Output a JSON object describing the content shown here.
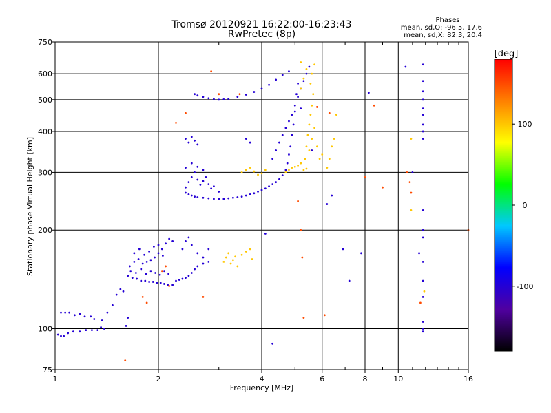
{
  "chart_data": {
    "type": "scatter",
    "title": "Tromsø 20120921 16:22:00-16:23:43",
    "subtitle": "RwPretec (8p)",
    "xlabel": "Frequency [MHz]",
    "ylabel": "Stationary phase Virtual Height [km]",
    "x_scale": "log",
    "y_scale": "log",
    "xlim": [
      1,
      16
    ],
    "ylim": [
      75,
      750
    ],
    "x_ticks": [
      1,
      2,
      4,
      6,
      8,
      10,
      16
    ],
    "x_tick_labels": [
      "1",
      "2",
      "4",
      "6",
      "8",
      "10",
      "16"
    ],
    "y_ticks": [
      75,
      100,
      200,
      300,
      400,
      500,
      600,
      750
    ],
    "y_tick_labels": [
      "75",
      "100",
      "200",
      "300",
      "400",
      "500",
      "600",
      "750"
    ],
    "x_gridlines": [
      1,
      2,
      4,
      6,
      8,
      10,
      16
    ],
    "y_gridlines": [
      75,
      100,
      200,
      300,
      400,
      500,
      600,
      750
    ],
    "grid": true,
    "legend_placement": "top-right",
    "legend_title": "Phases",
    "legend_lines": [
      "mean, sd,O: -96.5, 17.6",
      "mean, sd,X:  82.3, 20.4"
    ],
    "colorbar": {
      "label": "[deg]",
      "range": [
        -180,
        180
      ],
      "ticks": [
        100,
        0,
        -100
      ],
      "tick_labels": [
        "100",
        "0",
        "-100"
      ],
      "colors": [
        "#000000",
        "#5000a0",
        "#0000ff",
        "#00c8ff",
        "#00ff00",
        "#ffff00",
        "#ff8000",
        "#ff0000"
      ]
    },
    "series": [
      {
        "color_phase_deg": -100,
        "points": [
          [
            1.02,
            96
          ],
          [
            1.04,
            95
          ],
          [
            1.06,
            95
          ],
          [
            1.09,
            97
          ],
          [
            1.13,
            98
          ],
          [
            1.18,
            98
          ],
          [
            1.23,
            99
          ],
          [
            1.28,
            99
          ],
          [
            1.33,
            99
          ],
          [
            1.36,
            101
          ],
          [
            1.39,
            100
          ],
          [
            1.04,
            112
          ],
          [
            1.07,
            112
          ],
          [
            1.1,
            112
          ],
          [
            1.14,
            110
          ],
          [
            1.18,
            111
          ],
          [
            1.22,
            109
          ],
          [
            1.27,
            109
          ],
          [
            1.3,
            107
          ],
          [
            1.37,
            106
          ],
          [
            1.42,
            112
          ],
          [
            1.47,
            118
          ],
          [
            1.51,
            127
          ],
          [
            1.55,
            132
          ],
          [
            1.58,
            130
          ],
          [
            1.61,
            102
          ],
          [
            1.63,
            108
          ],
          [
            1.65,
            155
          ],
          [
            1.7,
            160
          ],
          [
            1.75,
            163
          ],
          [
            1.8,
            158
          ],
          [
            1.85,
            160
          ],
          [
            1.9,
            162
          ],
          [
            1.95,
            165
          ],
          [
            2.0,
            170
          ],
          [
            2.05,
            175
          ],
          [
            2.1,
            182
          ],
          [
            2.15,
            188
          ],
          [
            2.2,
            185
          ],
          [
            1.63,
            145
          ],
          [
            1.68,
            143
          ],
          [
            1.73,
            142
          ],
          [
            1.78,
            140
          ],
          [
            1.83,
            140
          ],
          [
            1.88,
            139
          ],
          [
            1.93,
            139
          ],
          [
            1.98,
            138
          ],
          [
            2.03,
            138
          ],
          [
            2.08,
            137
          ],
          [
            2.13,
            136
          ],
          [
            2.2,
            136
          ],
          [
            1.66,
            150
          ],
          [
            1.72,
            148
          ],
          [
            1.78,
            152
          ],
          [
            1.84,
            147
          ],
          [
            1.9,
            150
          ],
          [
            1.96,
            148
          ],
          [
            2.02,
            146
          ],
          [
            2.08,
            150
          ],
          [
            2.14,
            147
          ],
          [
            1.7,
            170
          ],
          [
            1.76,
            175
          ],
          [
            1.82,
            168
          ],
          [
            1.88,
            172
          ],
          [
            1.94,
            178
          ],
          [
            2.0,
            180
          ],
          [
            2.06,
            167
          ],
          [
            2.25,
            140
          ],
          [
            2.3,
            141
          ],
          [
            2.35,
            142
          ],
          [
            2.4,
            143
          ],
          [
            2.45,
            145
          ],
          [
            2.5,
            148
          ],
          [
            2.55,
            152
          ],
          [
            2.6,
            155
          ],
          [
            2.7,
            158
          ],
          [
            2.8,
            160
          ],
          [
            2.35,
            175
          ],
          [
            2.4,
            185
          ],
          [
            2.45,
            190
          ],
          [
            2.5,
            180
          ],
          [
            2.6,
            170
          ],
          [
            2.7,
            165
          ],
          [
            2.8,
            175
          ],
          [
            2.4,
            260
          ],
          [
            2.45,
            257
          ],
          [
            2.5,
            255
          ],
          [
            2.55,
            253
          ],
          [
            2.6,
            252
          ],
          [
            2.7,
            251
          ],
          [
            2.8,
            250
          ],
          [
            2.9,
            249
          ],
          [
            3.0,
            249
          ],
          [
            3.1,
            249
          ],
          [
            3.2,
            250
          ],
          [
            3.3,
            251
          ],
          [
            3.4,
            252
          ],
          [
            3.5,
            253
          ],
          [
            3.6,
            255
          ],
          [
            3.7,
            257
          ],
          [
            3.8,
            259
          ],
          [
            3.9,
            262
          ],
          [
            4.0,
            265
          ],
          [
            4.1,
            268
          ],
          [
            4.2,
            272
          ],
          [
            4.3,
            276
          ],
          [
            4.4,
            280
          ],
          [
            4.5,
            286
          ],
          [
            4.6,
            294
          ],
          [
            4.7,
            305
          ],
          [
            4.75,
            320
          ],
          [
            4.8,
            340
          ],
          [
            4.85,
            360
          ],
          [
            4.9,
            390
          ],
          [
            4.95,
            420
          ],
          [
            5.0,
            460
          ],
          [
            5.05,
            520
          ],
          [
            5.1,
            560
          ],
          [
            2.4,
            270
          ],
          [
            2.45,
            280
          ],
          [
            2.5,
            290
          ],
          [
            2.55,
            300
          ],
          [
            2.6,
            285
          ],
          [
            2.65,
            275
          ],
          [
            2.7,
            282
          ],
          [
            2.75,
            290
          ],
          [
            2.8,
            276
          ],
          [
            2.85,
            268
          ],
          [
            2.9,
            272
          ],
          [
            3.0,
            262
          ],
          [
            2.4,
            310
          ],
          [
            2.5,
            320
          ],
          [
            2.6,
            312
          ],
          [
            2.7,
            305
          ],
          [
            2.4,
            380
          ],
          [
            2.45,
            370
          ],
          [
            2.5,
            385
          ],
          [
            2.55,
            375
          ],
          [
            2.6,
            365
          ],
          [
            2.55,
            520
          ],
          [
            2.6,
            515
          ],
          [
            2.7,
            510
          ],
          [
            2.8,
            505
          ],
          [
            2.9,
            502
          ],
          [
            3.0,
            500
          ],
          [
            3.1,
            501
          ],
          [
            3.2,
            503
          ],
          [
            3.4,
            510
          ],
          [
            3.6,
            518
          ],
          [
            3.8,
            528
          ],
          [
            4.0,
            540
          ],
          [
            4.2,
            555
          ],
          [
            4.4,
            575
          ],
          [
            4.6,
            595
          ],
          [
            4.8,
            610
          ],
          [
            4.3,
            330
          ],
          [
            4.4,
            350
          ],
          [
            4.5,
            370
          ],
          [
            4.6,
            390
          ],
          [
            4.7,
            410
          ],
          [
            4.8,
            430
          ],
          [
            4.9,
            450
          ],
          [
            5.0,
            480
          ],
          [
            5.1,
            510
          ],
          [
            5.2,
            540
          ],
          [
            5.3,
            570
          ],
          [
            5.4,
            600
          ],
          [
            5.5,
            630
          ],
          [
            3.6,
            380
          ],
          [
            3.7,
            370
          ],
          [
            4.1,
            195
          ],
          [
            4.3,
            90
          ],
          [
            5.2,
            470
          ],
          [
            5.6,
            350
          ],
          [
            6.2,
            240
          ],
          [
            6.4,
            255
          ],
          [
            6.9,
            175
          ],
          [
            7.2,
            140
          ],
          [
            7.8,
            170
          ],
          [
            8.2,
            525
          ],
          [
            11.8,
            640
          ],
          [
            11.8,
            570
          ],
          [
            11.8,
            530
          ],
          [
            11.8,
            500
          ],
          [
            11.8,
            470
          ],
          [
            11.8,
            450
          ],
          [
            11.8,
            420
          ],
          [
            11.8,
            400
          ],
          [
            11.8,
            380
          ],
          [
            11.8,
            230
          ],
          [
            11.8,
            200
          ],
          [
            11.8,
            190
          ],
          [
            11.8,
            160
          ],
          [
            11.8,
            140
          ],
          [
            11.8,
            125
          ],
          [
            11.8,
            100
          ],
          [
            11.8,
            98
          ],
          [
            11.8,
            105
          ],
          [
            11.5,
            170
          ],
          [
            11.0,
            300
          ],
          [
            10.5,
            630
          ]
        ]
      },
      {
        "color_phase_deg": 100,
        "points": [
          [
            3.1,
            160
          ],
          [
            3.15,
            165
          ],
          [
            3.2,
            170
          ],
          [
            3.25,
            158
          ],
          [
            3.3,
            162
          ],
          [
            3.35,
            166
          ],
          [
            3.4,
            155
          ],
          [
            3.5,
            168
          ],
          [
            3.6,
            172
          ],
          [
            3.7,
            175
          ],
          [
            3.75,
            163
          ],
          [
            3.5,
            300
          ],
          [
            3.6,
            305
          ],
          [
            3.7,
            310
          ],
          [
            3.8,
            302
          ],
          [
            3.9,
            295
          ],
          [
            4.0,
            298
          ],
          [
            4.1,
            305
          ],
          [
            4.7,
            300
          ],
          [
            4.8,
            305
          ],
          [
            4.9,
            310
          ],
          [
            5.0,
            312
          ],
          [
            5.1,
            315
          ],
          [
            5.2,
            320
          ],
          [
            5.3,
            305
          ],
          [
            5.4,
            308
          ],
          [
            5.35,
            330
          ],
          [
            5.4,
            360
          ],
          [
            5.45,
            390
          ],
          [
            5.5,
            420
          ],
          [
            5.55,
            450
          ],
          [
            5.6,
            480
          ],
          [
            5.65,
            520
          ],
          [
            5.55,
            560
          ],
          [
            5.6,
            600
          ],
          [
            5.7,
            640
          ],
          [
            5.5,
            350
          ],
          [
            5.6,
            380
          ],
          [
            5.7,
            410
          ],
          [
            5.8,
            360
          ],
          [
            5.9,
            330
          ],
          [
            6.0,
            340
          ],
          [
            5.2,
            540
          ],
          [
            5.3,
            580
          ],
          [
            5.4,
            620
          ],
          [
            5.2,
            650
          ],
          [
            6.2,
            310
          ],
          [
            6.3,
            330
          ],
          [
            6.4,
            360
          ],
          [
            6.5,
            380
          ],
          [
            6.6,
            450
          ],
          [
            10.9,
            380
          ],
          [
            10.9,
            230
          ],
          [
            11.9,
            130
          ]
        ]
      },
      {
        "color_phase_deg": 150,
        "points": [
          [
            2.05,
            150
          ],
          [
            2.1,
            155
          ],
          [
            2.15,
            135
          ],
          [
            1.8,
            125
          ],
          [
            1.85,
            120
          ],
          [
            2.25,
            425
          ],
          [
            2.4,
            455
          ],
          [
            2.85,
            610
          ],
          [
            3.0,
            520
          ],
          [
            3.45,
            520
          ],
          [
            5.2,
            200
          ],
          [
            5.25,
            165
          ],
          [
            5.3,
            108
          ],
          [
            5.1,
            245
          ],
          [
            5.8,
            475
          ],
          [
            6.3,
            455
          ],
          [
            6.1,
            110
          ],
          [
            8.5,
            480
          ],
          [
            8.0,
            290
          ],
          [
            9.0,
            270
          ],
          [
            10.6,
            300
          ],
          [
            10.8,
            280
          ],
          [
            10.9,
            260
          ],
          [
            11.6,
            120
          ],
          [
            16.0,
            200
          ],
          [
            1.6,
            80
          ],
          [
            2.7,
            125
          ]
        ]
      }
    ]
  }
}
